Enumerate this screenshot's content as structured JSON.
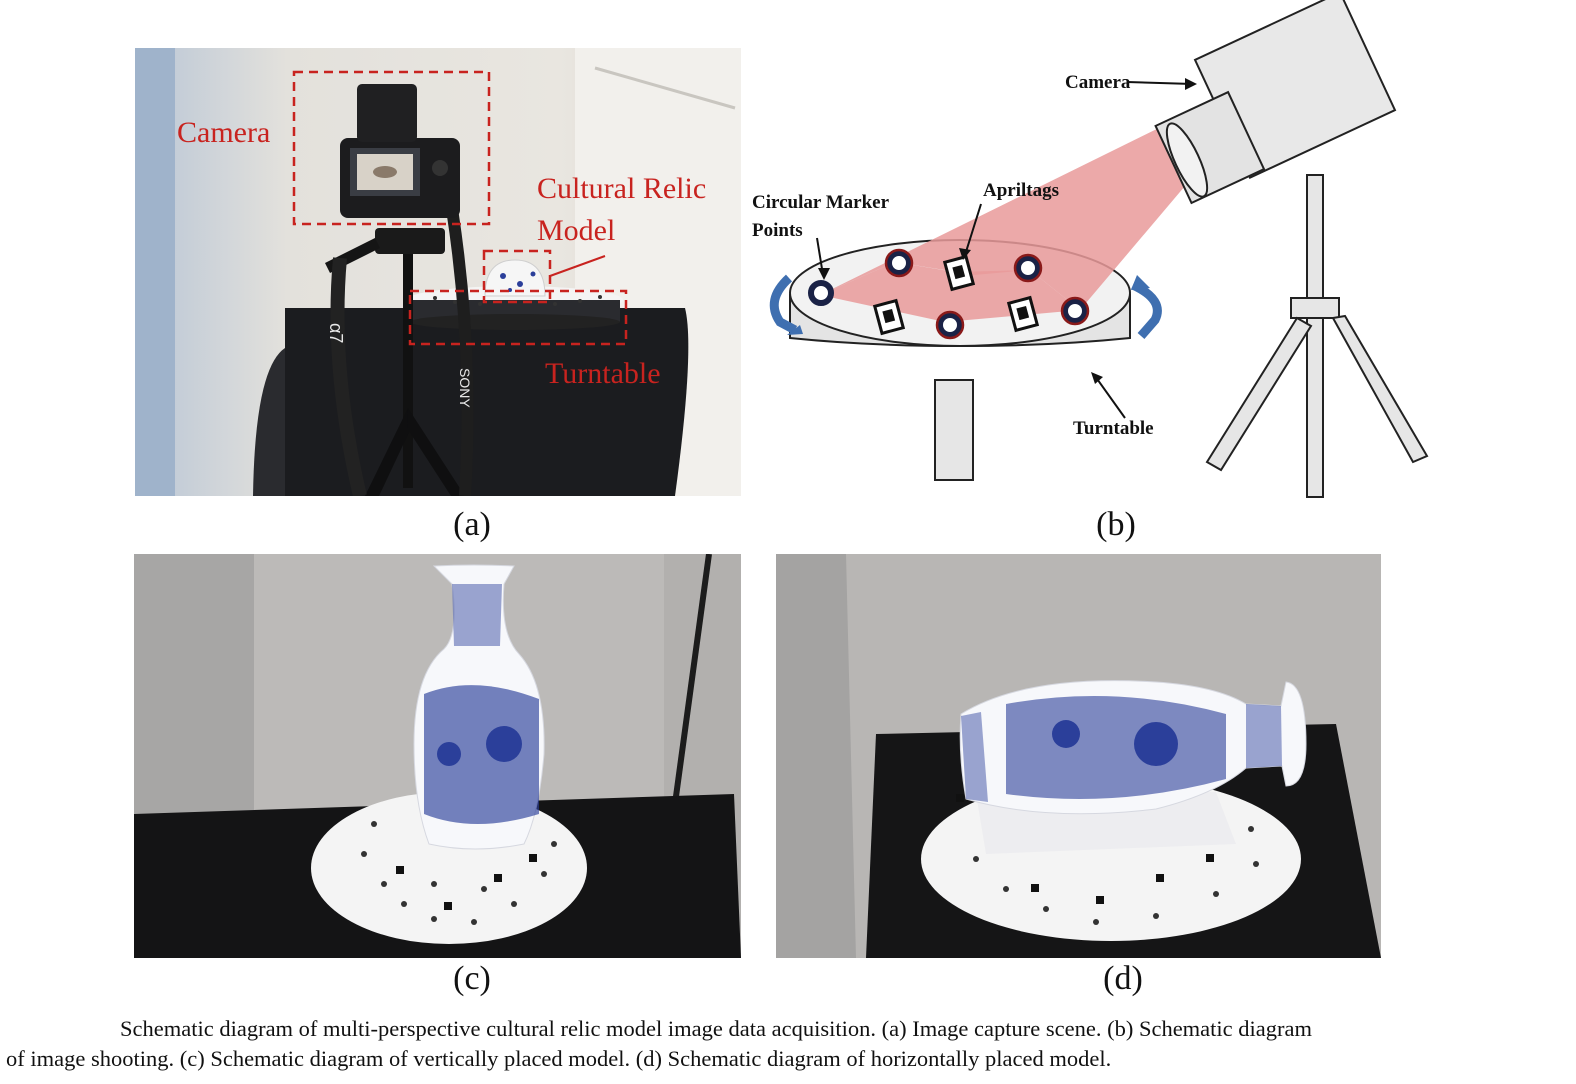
{
  "panel_a": {
    "labels": {
      "camera": "Camera",
      "relic_line1": "Cultural Relic",
      "relic_line2": "Model",
      "turntable": "Turntable"
    },
    "strap_text_1": "α7",
    "strap_text_2": "SONY"
  },
  "panel_b": {
    "labels": {
      "camera": "Camera",
      "markers_line1": "Circular Marker",
      "markers_line2": "Points",
      "apriltags": "Apriltags",
      "turntable": "Turntable"
    }
  },
  "subfigure_labels": {
    "a": "(a)",
    "b": "(b)",
    "c": "(c)",
    "d": "(d)"
  },
  "caption": {
    "line1": "Schematic diagram of multi-perspective cultural relic model image data acquisition. (a) Image capture scene. (b) Schematic diagram",
    "line2": "of image shooting. (c) Schematic diagram of vertically placed model. (d) Schematic diagram of horizontally placed model."
  },
  "colors": {
    "annotation_red": "#c8231f",
    "porcelain_blue": "#2b3f9a",
    "diagram_red_fill": "#e99a9a",
    "arrow_blue": "#3f6fb0"
  }
}
